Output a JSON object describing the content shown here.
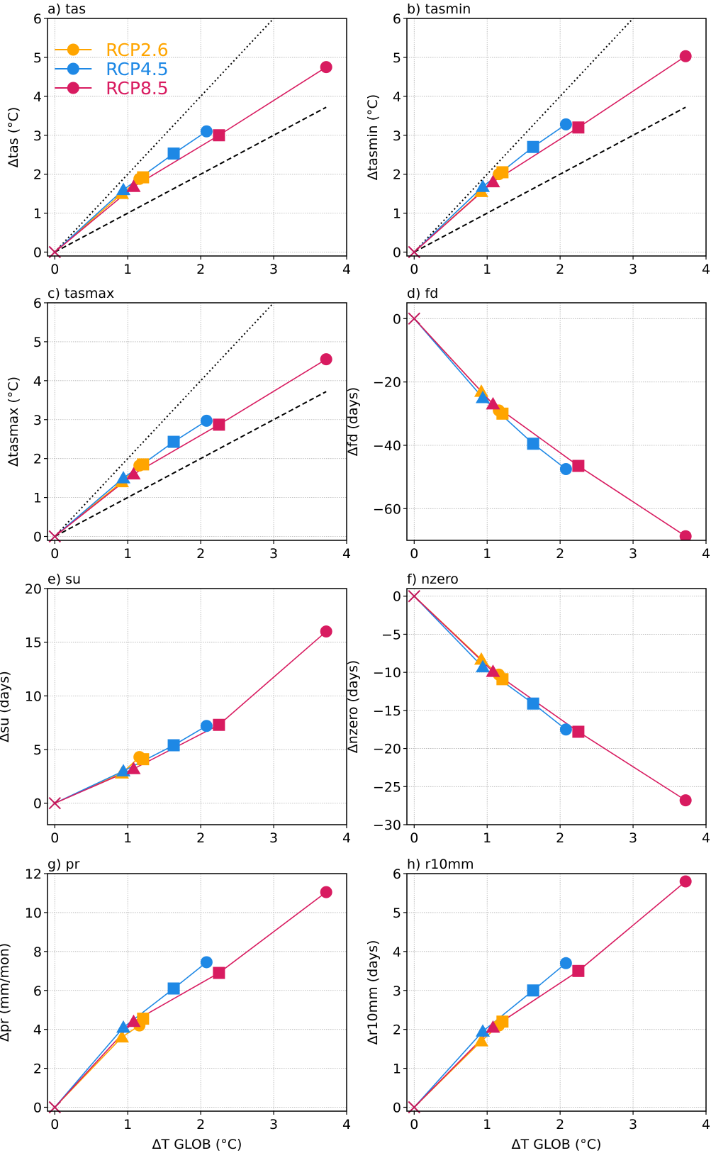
{
  "chart_data": {
    "type": "line",
    "xlabel": "ΔT GLOB (°C)",
    "xlim": [
      -0.1,
      4
    ],
    "xticks": [
      0,
      1,
      2,
      3,
      4
    ],
    "grid": true,
    "legend": {
      "placement": "top-left",
      "panel": "a",
      "entries": [
        {
          "name": "RCP2.6",
          "color": "#FFA500"
        },
        {
          "name": "RCP4.5",
          "color": "#1E88E5"
        },
        {
          "name": "RCP8.5",
          "color": "#D81B60"
        }
      ]
    },
    "origin_marker": {
      "symbol": "x",
      "x": 0,
      "y": 0,
      "color": "#C2185B"
    },
    "marker_order": [
      "triangle",
      "square",
      "circle"
    ],
    "series_x": [
      {
        "name": "RCP2.6",
        "color": "#FFA500",
        "x": [
          0.92,
          1.21,
          1.16
        ]
      },
      {
        "name": "RCP4.5",
        "color": "#1E88E5",
        "x": [
          0.94,
          1.63,
          2.08
        ]
      },
      {
        "name": "RCP8.5",
        "color": "#D81B60",
        "x": [
          1.08,
          2.25,
          3.72
        ]
      }
    ],
    "panels": [
      {
        "id": "a",
        "title": "a) tas",
        "ylabel": "Δtas (°C)",
        "ylim": [
          -0.1,
          6
        ],
        "yticks": [
          0,
          1,
          2,
          3,
          4,
          5,
          6
        ],
        "reference_lines": true,
        "values": {
          "RCP2.6": [
            1.5,
            1.92,
            1.88
          ],
          "RCP4.5": [
            1.6,
            2.53,
            3.1
          ],
          "RCP8.5": [
            1.68,
            3.0,
            4.75
          ]
        }
      },
      {
        "id": "b",
        "title": "b) tasmin",
        "ylabel": "Δtasmin (°C)",
        "ylim": [
          -0.1,
          6
        ],
        "yticks": [
          0,
          1,
          2,
          3,
          4,
          5,
          6
        ],
        "reference_lines": true,
        "values": {
          "RCP2.6": [
            1.55,
            2.05,
            2.0
          ],
          "RCP4.5": [
            1.68,
            2.7,
            3.28
          ],
          "RCP8.5": [
            1.8,
            3.2,
            5.03
          ]
        }
      },
      {
        "id": "c",
        "title": "c) tasmax",
        "ylabel": "Δtasmax (°C)",
        "ylim": [
          -0.1,
          6
        ],
        "yticks": [
          0,
          1,
          2,
          3,
          4,
          5,
          6
        ],
        "reference_lines": true,
        "values": {
          "RCP2.6": [
            1.4,
            1.85,
            1.82
          ],
          "RCP4.5": [
            1.5,
            2.43,
            2.97
          ],
          "RCP8.5": [
            1.6,
            2.87,
            4.55
          ]
        }
      },
      {
        "id": "d",
        "title": "d) fd",
        "ylabel": "Δfd (days)",
        "ylim": [
          -70,
          5
        ],
        "yticks": [
          0,
          -20,
          -40,
          -60
        ],
        "reference_lines": false,
        "values": {
          "RCP2.6": [
            -23,
            -30,
            -29
          ],
          "RCP4.5": [
            -25,
            -39.5,
            -47.5
          ],
          "RCP8.5": [
            -27,
            -46.5,
            -68.7
          ]
        }
      },
      {
        "id": "e",
        "title": "e) su",
        "ylabel": "Δsu (days)",
        "ylim": [
          -2,
          20
        ],
        "yticks": [
          0,
          5,
          10,
          15,
          20
        ],
        "reference_lines": false,
        "values": {
          "RCP2.6": [
            2.8,
            4.1,
            4.3
          ],
          "RCP4.5": [
            3.0,
            5.4,
            7.2
          ],
          "RCP8.5": [
            3.2,
            7.3,
            16.0
          ]
        }
      },
      {
        "id": "f",
        "title": "f) nzero",
        "ylabel": "Δnzero (days)",
        "ylim": [
          -30,
          1
        ],
        "yticks": [
          0,
          -5,
          -10,
          -15,
          -20,
          -25,
          -30
        ],
        "reference_lines": false,
        "values": {
          "RCP2.6": [
            -8.3,
            -10.9,
            -10.3
          ],
          "RCP4.5": [
            -9.3,
            -14.1,
            -17.5
          ],
          "RCP8.5": [
            -9.9,
            -17.8,
            -26.8
          ]
        }
      },
      {
        "id": "g",
        "title": "g) pr",
        "ylabel": "Δpr (mm/mon)",
        "ylim": [
          -0.2,
          12
        ],
        "yticks": [
          0,
          2,
          4,
          6,
          8,
          10,
          12
        ],
        "reference_lines": false,
        "values": {
          "RCP2.6": [
            3.6,
            4.55,
            4.2
          ],
          "RCP4.5": [
            4.1,
            6.1,
            7.45
          ],
          "RCP8.5": [
            4.4,
            6.9,
            11.05
          ]
        }
      },
      {
        "id": "h",
        "title": "h) r10mm",
        "ylabel": "Δr10mm (days)",
        "ylim": [
          -0.1,
          6
        ],
        "yticks": [
          0,
          1,
          2,
          3,
          4,
          5,
          6
        ],
        "reference_lines": false,
        "values": {
          "RCP2.6": [
            1.7,
            2.2,
            2.1
          ],
          "RCP4.5": [
            1.95,
            3.0,
            3.7
          ],
          "RCP8.5": [
            2.05,
            3.5,
            5.8
          ]
        }
      }
    ],
    "reference": {
      "dotted": {
        "slope": 2,
        "x_end": 3.0,
        "style": "dotted",
        "color": "#000000"
      },
      "dashed": {
        "slope": 1,
        "x_end": 3.72,
        "style": "dashed",
        "color": "#000000"
      }
    }
  }
}
